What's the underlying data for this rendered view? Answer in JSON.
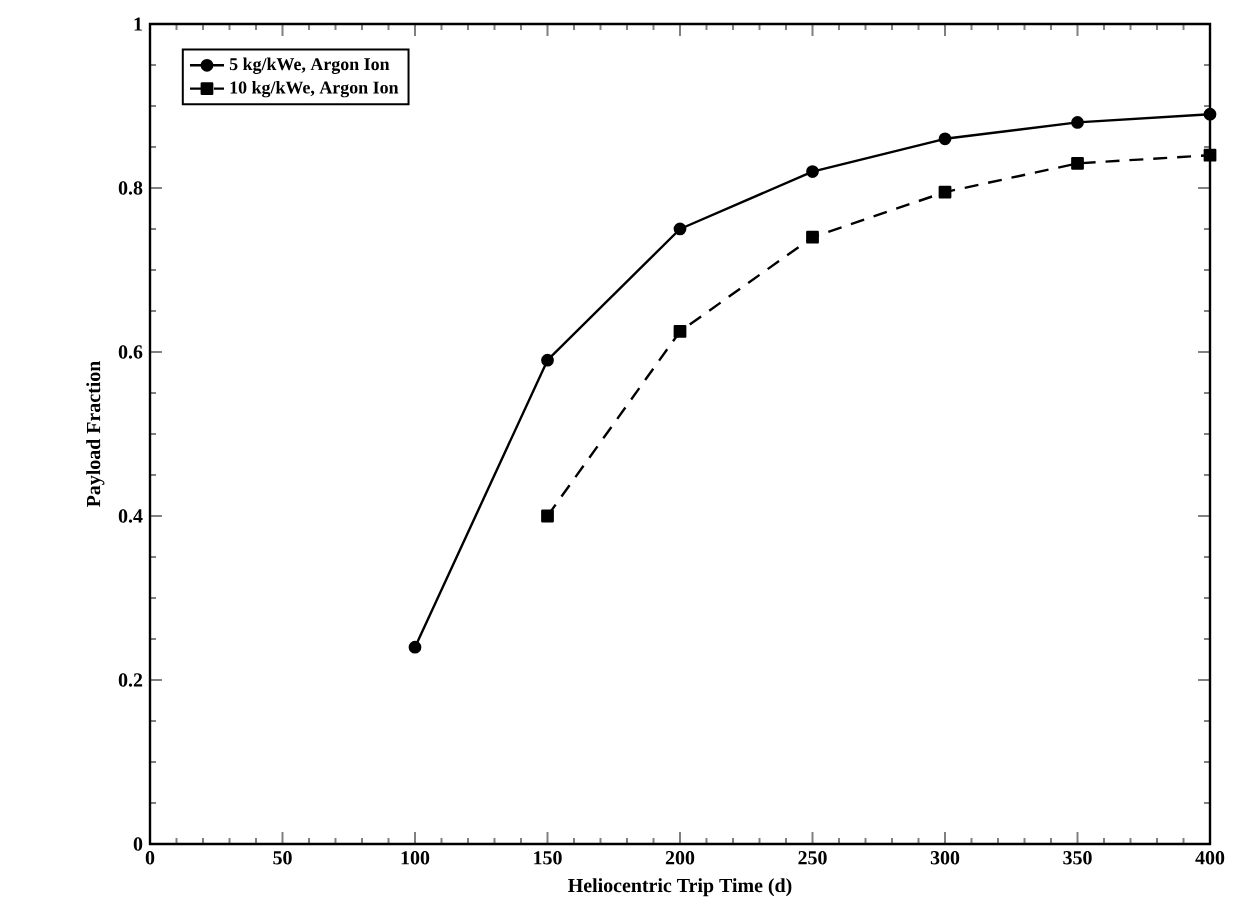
{
  "chart_data": {
    "type": "line",
    "xlabel": "Heliocentric Trip Time (d)",
    "ylabel": "Payload Fraction",
    "xlim": [
      0,
      400
    ],
    "xticks": [
      0,
      50,
      100,
      150,
      200,
      250,
      300,
      350,
      400
    ],
    "ylim": [
      0,
      1
    ],
    "yticks": [
      0,
      0.2,
      0.4,
      0.6,
      0.8,
      1
    ],
    "legend": "top left",
    "grid": false,
    "series": [
      {
        "name": "5 kg/kWe, Argon Ion",
        "color": "#000000",
        "marker": "circle",
        "line_style": "solid",
        "x": [
          100,
          150,
          200,
          250,
          300,
          350,
          400
        ],
        "values": [
          0.24,
          0.59,
          0.75,
          0.82,
          0.86,
          0.88,
          0.89
        ]
      },
      {
        "name": "10 kg/kWe, Argon Ion",
        "color": "#000000",
        "marker": "square",
        "line_style": "dashed",
        "x": [
          150,
          200,
          250,
          300,
          350,
          400
        ],
        "values": [
          0.4,
          0.625,
          0.74,
          0.795,
          0.83,
          0.84
        ]
      }
    ]
  }
}
